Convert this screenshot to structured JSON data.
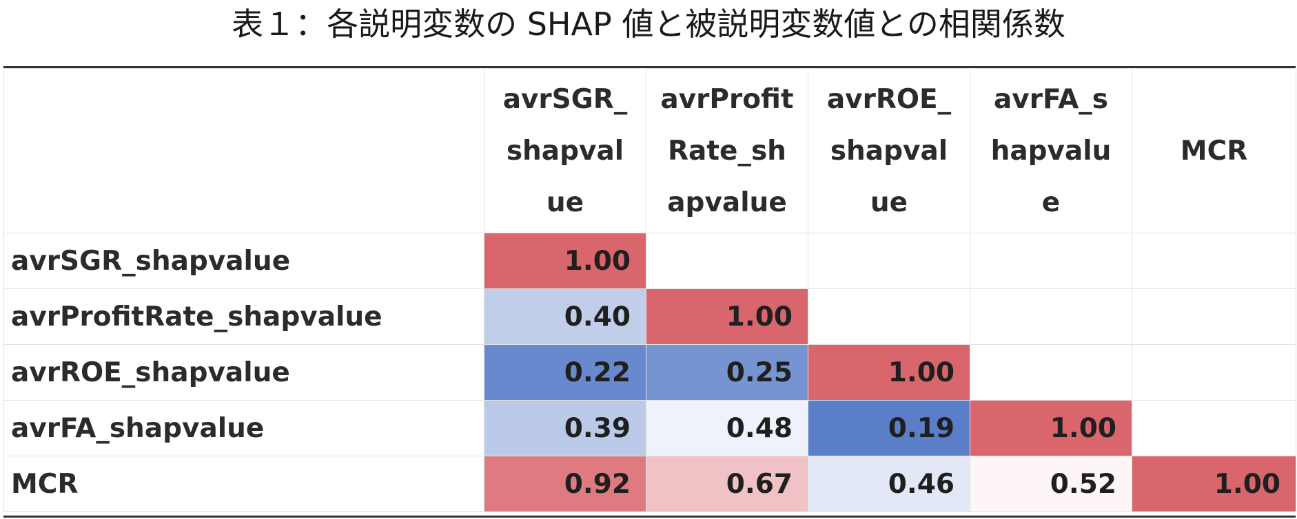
{
  "caption": "表１：各説明変数の SHAP 値と被説明変数値との相関係数",
  "colors": {
    "high": "#d9666d",
    "mid": "#ffffff",
    "low": "#5a7ec8"
  },
  "chart_data": {
    "type": "heatmap",
    "title": "表１：各説明変数の SHAP 値と被説明変数値との相関係数",
    "column_headers": [
      "avrSGR_\nshapval\nue",
      "avrProfit\nRate_sh\napvalue",
      "avrROE_\nshapval\nue",
      "avrFA_s\nhapvalu\ne",
      "MCR"
    ],
    "row_headers": [
      "avrSGR_shapvalue",
      "avrProfitRate_shapvalue",
      "avrROE_shapvalue",
      "avrFA_shapvalue",
      "MCR"
    ],
    "values": [
      [
        "1.00",
        null,
        null,
        null,
        null
      ],
      [
        "0.40",
        "1.00",
        null,
        null,
        null
      ],
      [
        "0.22",
        "0.25",
        "1.00",
        null,
        null
      ],
      [
        "0.39",
        "0.48",
        "0.19",
        "1.00",
        null
      ],
      [
        "0.92",
        "0.67",
        "0.46",
        "0.52",
        "1.00"
      ]
    ],
    "value_range": [
      0.19,
      1.0
    ]
  }
}
